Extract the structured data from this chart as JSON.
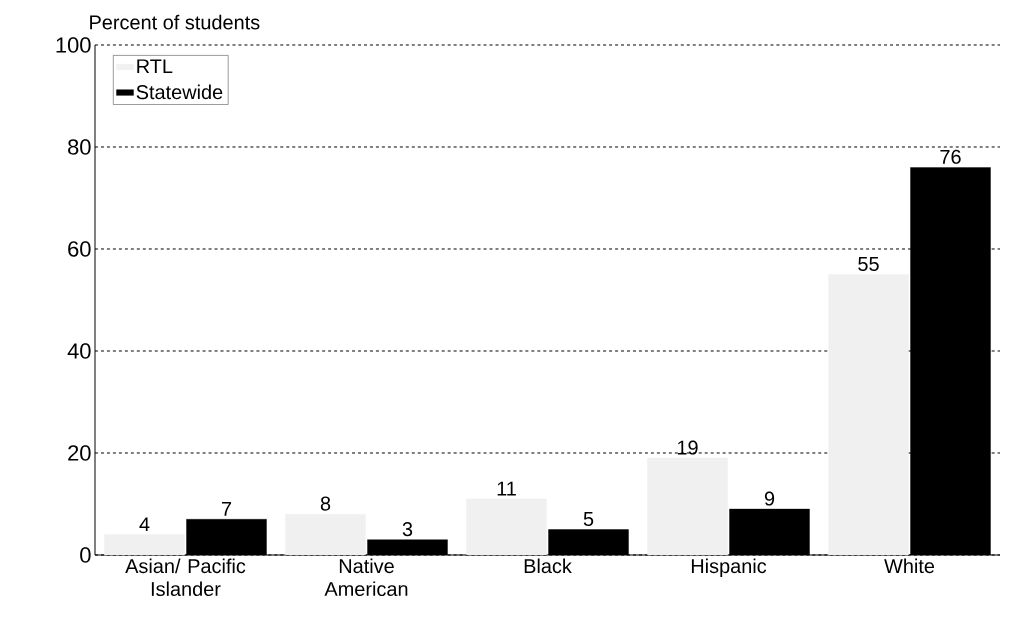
{
  "chart_data": {
    "type": "bar",
    "ylabel": "Percent of students",
    "categories": [
      "Asian/ Pacific Islander",
      "Native American",
      "Black",
      "Hispanic",
      "White"
    ],
    "series": [
      {
        "name": "RTL",
        "color": "#f0f0f0",
        "values": [
          4,
          8,
          11,
          19,
          55
        ]
      },
      {
        "name": "Statewide",
        "color": "#000000",
        "values": [
          7,
          3,
          5,
          9,
          76
        ]
      }
    ],
    "ylim": [
      0,
      100
    ],
    "yticks": [
      0,
      20,
      40,
      60,
      80,
      100
    ],
    "grid": "y",
    "legend": "top left",
    "data_labels": true
  }
}
